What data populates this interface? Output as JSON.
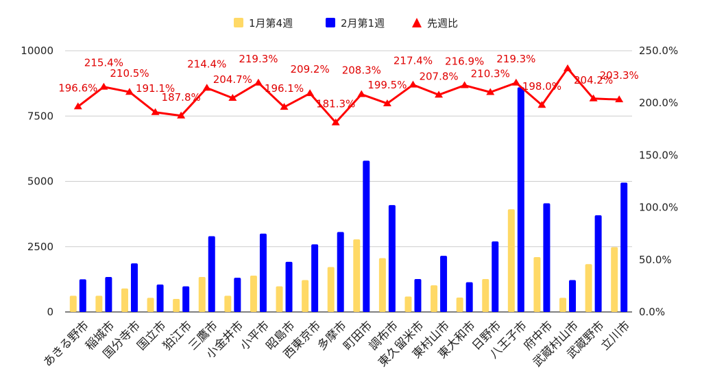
{
  "chart_data": {
    "type": "bar",
    "categories": [
      "あきる野市",
      "稲城市",
      "国分寺市",
      "国立市",
      "狛江市",
      "三鷹市",
      "小金井市",
      "小平市",
      "昭島市",
      "西東京市",
      "多摩市",
      "町田市",
      "調布市",
      "東久留米市",
      "東村山市",
      "東大和市",
      "日野市",
      "八王子市",
      "府中市",
      "武蔵村山市",
      "武蔵野市",
      "立川市"
    ],
    "series": [
      {
        "name": "1月第4週",
        "type": "bar",
        "axis": "left",
        "color": "#FFD966",
        "values": [
          620,
          620,
          900,
          540,
          500,
          1340,
          620,
          1390,
          980,
          1220,
          1720,
          2780,
          2060,
          590,
          1020,
          550,
          1260,
          3930,
          2100,
          540,
          1830,
          2480
        ]
      },
      {
        "name": "2月第1週",
        "type": "bar",
        "axis": "left",
        "color": "#0000FF",
        "values": [
          1250,
          1340,
          1860,
          1050,
          980,
          2900,
          1310,
          3000,
          1920,
          2590,
          3060,
          5790,
          4090,
          1260,
          2150,
          1140,
          2700,
          8600,
          4160,
          1220,
          3700,
          4950
        ]
      },
      {
        "name": "先週比",
        "type": "line",
        "axis": "right",
        "color": "#FF0000",
        "values": [
          196.6,
          215.4,
          210.5,
          191.1,
          187.8,
          214.4,
          204.7,
          219.3,
          196.1,
          209.2,
          181.3,
          208.3,
          199.5,
          217.4,
          207.8,
          216.9,
          210.3,
          219.3,
          198.0,
          233.0,
          204.2,
          203.3
        ],
        "labels": [
          "196.6%",
          "215.4%",
          "210.5%",
          "191.1%",
          "187.8%",
          "214.4%",
          "204.7%",
          "219.3%",
          "196.1%",
          "209.2%",
          "181.3%",
          "208.3%",
          "199.5%",
          "217.4%",
          "207.8%",
          "216.9%",
          "210.3%",
          "219.3%",
          "198.0%",
          "",
          "204.2%",
          "203.3%"
        ]
      }
    ],
    "left_axis": {
      "ylim": [
        0,
        10000
      ],
      "ticks": [
        0,
        2500,
        5000,
        7500,
        10000
      ],
      "tick_labels": [
        "0",
        "2500",
        "5000",
        "7500",
        "10000"
      ]
    },
    "right_axis": {
      "ylim": [
        0,
        250
      ],
      "ticks": [
        0,
        50,
        100,
        150,
        200,
        250
      ],
      "tick_labels": [
        "0.0%",
        "50.0%",
        "100.0%",
        "150.0%",
        "200.0%",
        "250.0%"
      ]
    },
    "legend": {
      "position": "top",
      "items": [
        "1月第4週",
        "2月第1週",
        "先週比"
      ]
    },
    "grid": true
  }
}
